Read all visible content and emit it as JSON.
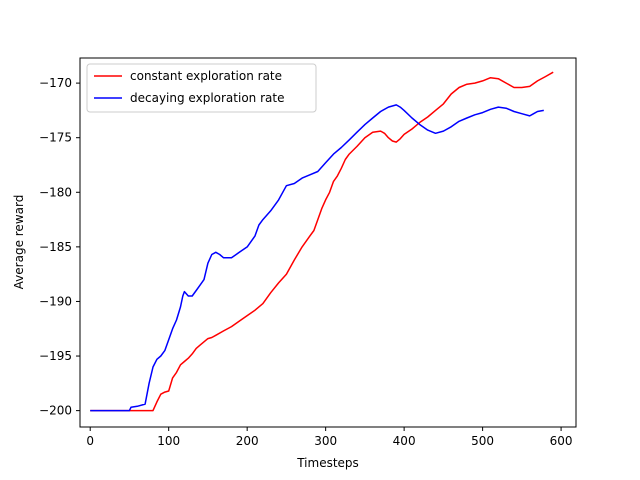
{
  "chart_data": {
    "type": "line",
    "title": "",
    "xlabel": "Timesteps",
    "ylabel": "Average reward",
    "xlim": [
      -13,
      619
    ],
    "ylim": [
      -201.5,
      -167.7
    ],
    "xticks": [
      0,
      100,
      200,
      300,
      400,
      500,
      600
    ],
    "yticks": [
      -200,
      -195,
      -190,
      -185,
      -180,
      -175,
      -170
    ],
    "grid": false,
    "legend_position": "top-left",
    "series": [
      {
        "name": "constant exploration rate",
        "color": "#ff0000",
        "points": [
          [
            0,
            -200
          ],
          [
            50,
            -200
          ],
          [
            80,
            -200
          ],
          [
            85,
            -199.2
          ],
          [
            90,
            -198.5
          ],
          [
            95,
            -198.3
          ],
          [
            100,
            -198.2
          ],
          [
            105,
            -197
          ],
          [
            110,
            -196.5
          ],
          [
            115,
            -195.8
          ],
          [
            120,
            -195.5
          ],
          [
            125,
            -195.2
          ],
          [
            130,
            -194.8
          ],
          [
            135,
            -194.3
          ],
          [
            140,
            -194
          ],
          [
            145,
            -193.7
          ],
          [
            150,
            -193.4
          ],
          [
            155,
            -193.3
          ],
          [
            160,
            -193.1
          ],
          [
            170,
            -192.7
          ],
          [
            180,
            -192.3
          ],
          [
            190,
            -191.8
          ],
          [
            200,
            -191.3
          ],
          [
            210,
            -190.8
          ],
          [
            220,
            -190.2
          ],
          [
            230,
            -189.2
          ],
          [
            240,
            -188.3
          ],
          [
            250,
            -187.5
          ],
          [
            260,
            -186.2
          ],
          [
            270,
            -185
          ],
          [
            280,
            -184
          ],
          [
            285,
            -183.5
          ],
          [
            290,
            -182.5
          ],
          [
            295,
            -181.5
          ],
          [
            300,
            -180.7
          ],
          [
            305,
            -180
          ],
          [
            310,
            -179
          ],
          [
            315,
            -178.5
          ],
          [
            320,
            -177.8
          ],
          [
            325,
            -177
          ],
          [
            330,
            -176.5
          ],
          [
            340,
            -175.8
          ],
          [
            350,
            -175
          ],
          [
            360,
            -174.5
          ],
          [
            370,
            -174.4
          ],
          [
            375,
            -174.6
          ],
          [
            380,
            -175
          ],
          [
            385,
            -175.3
          ],
          [
            390,
            -175.4
          ],
          [
            395,
            -175.1
          ],
          [
            400,
            -174.7
          ],
          [
            410,
            -174.2
          ],
          [
            420,
            -173.6
          ],
          [
            430,
            -173.1
          ],
          [
            440,
            -172.5
          ],
          [
            450,
            -171.9
          ],
          [
            460,
            -171
          ],
          [
            470,
            -170.4
          ],
          [
            480,
            -170.1
          ],
          [
            490,
            -170
          ],
          [
            500,
            -169.8
          ],
          [
            510,
            -169.5
          ],
          [
            520,
            -169.6
          ],
          [
            530,
            -170
          ],
          [
            540,
            -170.4
          ],
          [
            550,
            -170.4
          ],
          [
            560,
            -170.3
          ],
          [
            570,
            -169.8
          ],
          [
            580,
            -169.4
          ],
          [
            590,
            -169
          ]
        ]
      },
      {
        "name": "decaying exploration rate",
        "color": "#0000ff",
        "points": [
          [
            0,
            -200
          ],
          [
            50,
            -200
          ],
          [
            52,
            -199.7
          ],
          [
            60,
            -199.6
          ],
          [
            70,
            -199.4
          ],
          [
            75,
            -197.5
          ],
          [
            80,
            -196
          ],
          [
            85,
            -195.3
          ],
          [
            90,
            -195
          ],
          [
            95,
            -194.5
          ],
          [
            100,
            -193.5
          ],
          [
            105,
            -192.5
          ],
          [
            110,
            -191.7
          ],
          [
            115,
            -190.5
          ],
          [
            118,
            -189.5
          ],
          [
            120,
            -189.1
          ],
          [
            125,
            -189.5
          ],
          [
            130,
            -189.5
          ],
          [
            135,
            -189
          ],
          [
            140,
            -188.5
          ],
          [
            145,
            -188
          ],
          [
            150,
            -186.5
          ],
          [
            155,
            -185.7
          ],
          [
            160,
            -185.5
          ],
          [
            165,
            -185.7
          ],
          [
            170,
            -186
          ],
          [
            180,
            -186
          ],
          [
            190,
            -185.5
          ],
          [
            200,
            -185
          ],
          [
            210,
            -184
          ],
          [
            215,
            -183
          ],
          [
            220,
            -182.5
          ],
          [
            230,
            -181.7
          ],
          [
            240,
            -180.7
          ],
          [
            250,
            -179.4
          ],
          [
            260,
            -179.2
          ],
          [
            270,
            -178.7
          ],
          [
            280,
            -178.4
          ],
          [
            290,
            -178.1
          ],
          [
            300,
            -177.3
          ],
          [
            310,
            -176.5
          ],
          [
            320,
            -175.9
          ],
          [
            330,
            -175.2
          ],
          [
            340,
            -174.5
          ],
          [
            350,
            -173.8
          ],
          [
            360,
            -173.2
          ],
          [
            370,
            -172.6
          ],
          [
            380,
            -172.2
          ],
          [
            390,
            -172
          ],
          [
            395,
            -172.2
          ],
          [
            400,
            -172.5
          ],
          [
            410,
            -173.2
          ],
          [
            420,
            -173.8
          ],
          [
            430,
            -174.3
          ],
          [
            440,
            -174.6
          ],
          [
            450,
            -174.4
          ],
          [
            460,
            -174
          ],
          [
            470,
            -173.5
          ],
          [
            480,
            -173.2
          ],
          [
            490,
            -172.9
          ],
          [
            500,
            -172.7
          ],
          [
            510,
            -172.4
          ],
          [
            520,
            -172.2
          ],
          [
            530,
            -172.3
          ],
          [
            540,
            -172.6
          ],
          [
            550,
            -172.8
          ],
          [
            560,
            -173
          ],
          [
            565,
            -172.8
          ],
          [
            570,
            -172.6
          ],
          [
            578,
            -172.5
          ]
        ]
      }
    ]
  }
}
